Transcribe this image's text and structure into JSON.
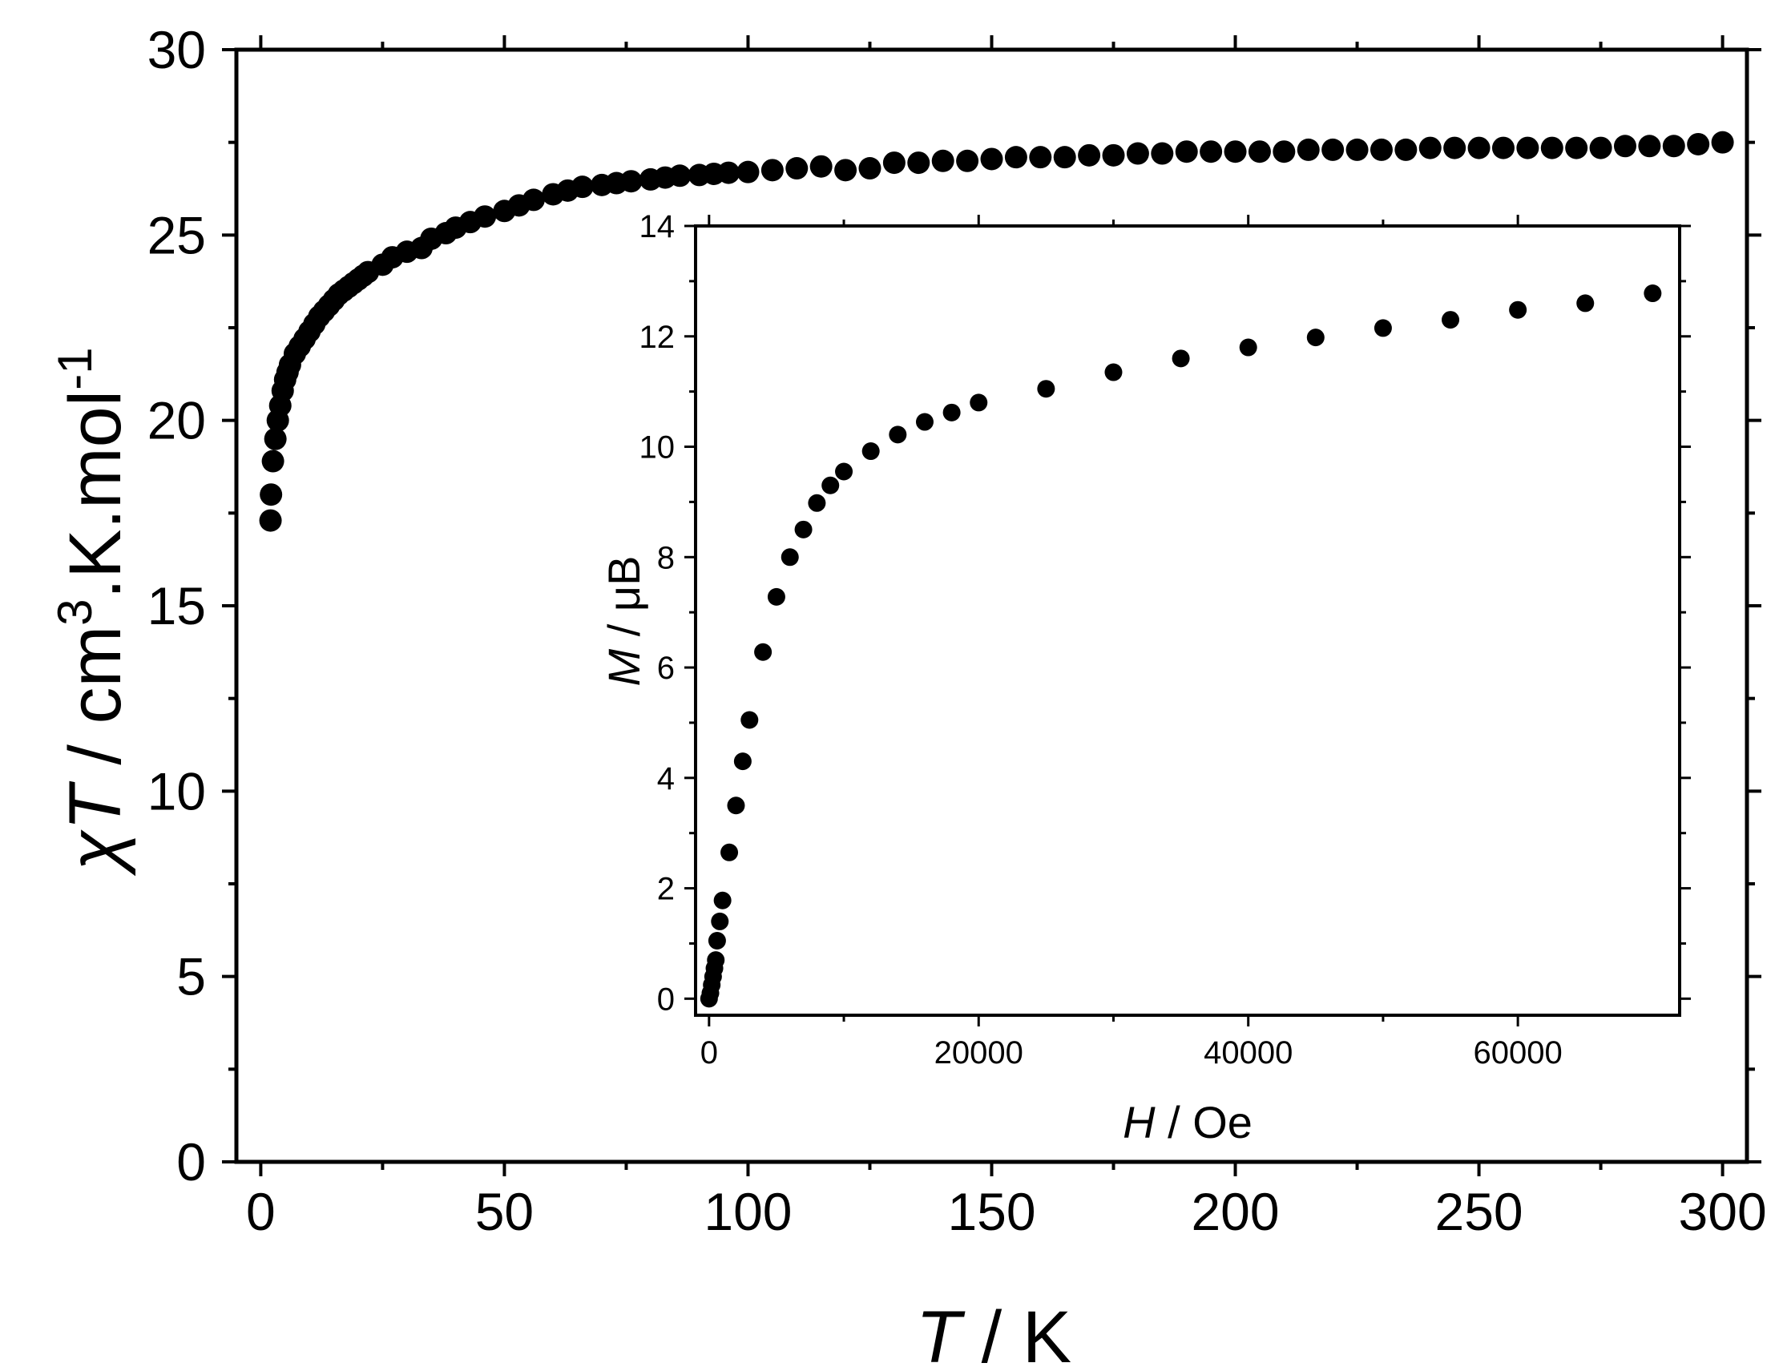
{
  "chart_data": [
    {
      "type": "scatter",
      "title": "",
      "xlabel": {
        "symbol": "T",
        "rest": " / K"
      },
      "ylabel": {
        "symbol": "χT",
        "rest": " / cm",
        "sup1": "3",
        "mid": ".K.mol",
        "sup2": "-1"
      },
      "xlim": [
        -5,
        305
      ],
      "ylim": [
        0,
        30
      ],
      "xticks": [
        0,
        50,
        100,
        150,
        200,
        250,
        300
      ],
      "yticks": [
        0,
        5,
        10,
        15,
        20,
        25,
        30
      ],
      "xtick_labels": [
        "0",
        "50",
        "100",
        "150",
        "200",
        "250",
        "300"
      ],
      "ytick_labels": [
        "0",
        "5",
        "10",
        "15",
        "20",
        "25",
        "30"
      ],
      "grid": false,
      "marker_color": "#000000",
      "x": [
        2,
        2.1,
        2.5,
        3,
        3.5,
        4,
        4.5,
        5,
        5.5,
        6,
        7,
        8,
        9,
        10,
        11,
        12,
        13,
        14,
        15,
        16,
        17,
        18,
        19,
        20,
        21,
        22,
        25,
        27,
        30,
        33,
        35,
        38,
        40,
        43,
        46,
        50,
        53,
        56,
        60,
        63,
        66,
        70,
        73,
        76,
        80,
        83,
        86,
        90,
        93,
        96,
        100,
        105,
        110,
        115,
        120,
        125,
        130,
        135,
        140,
        145,
        150,
        155,
        160,
        165,
        170,
        175,
        180,
        185,
        190,
        195,
        200,
        205,
        210,
        215,
        220,
        225,
        230,
        235,
        240,
        245,
        250,
        255,
        260,
        265,
        270,
        275,
        280,
        285,
        290,
        295,
        300
      ],
      "y": [
        17.3,
        18.0,
        18.9,
        19.5,
        20.0,
        20.4,
        20.8,
        21.1,
        21.3,
        21.5,
        21.8,
        22.0,
        22.2,
        22.4,
        22.6,
        22.8,
        22.95,
        23.1,
        23.25,
        23.4,
        23.5,
        23.6,
        23.7,
        23.8,
        23.9,
        24.0,
        24.2,
        24.4,
        24.55,
        24.65,
        24.9,
        25.05,
        25.2,
        25.35,
        25.5,
        25.65,
        25.8,
        25.95,
        26.1,
        26.2,
        26.3,
        26.35,
        26.4,
        26.45,
        26.5,
        26.55,
        26.6,
        26.62,
        26.65,
        26.68,
        26.7,
        26.75,
        26.8,
        26.85,
        26.75,
        26.8,
        26.95,
        26.95,
        27.0,
        27.0,
        27.05,
        27.1,
        27.1,
        27.1,
        27.15,
        27.15,
        27.2,
        27.2,
        27.25,
        27.25,
        27.25,
        27.25,
        27.25,
        27.3,
        27.3,
        27.3,
        27.3,
        27.3,
        27.35,
        27.35,
        27.35,
        27.35,
        27.35,
        27.35,
        27.35,
        27.35,
        27.4,
        27.4,
        27.4,
        27.45,
        27.5
      ]
    },
    {
      "type": "scatter",
      "title": "",
      "xlabel": {
        "symbol": "H",
        "rest": " / Oe"
      },
      "ylabel": {
        "symbol": "M",
        "rest": " / μB"
      },
      "xlim": [
        -1000,
        72000
      ],
      "ylim": [
        -0.3,
        14
      ],
      "xticks": [
        0,
        20000,
        40000,
        60000
      ],
      "yticks": [
        0,
        2,
        4,
        6,
        8,
        10,
        12,
        14
      ],
      "xtick_labels": [
        "0",
        "20000",
        "40000",
        "60000"
      ],
      "ytick_labels": [
        "0",
        "2",
        "4",
        "6",
        "8",
        "10",
        "12",
        "14"
      ],
      "grid": false,
      "marker_color": "#000000",
      "x": [
        0,
        100,
        200,
        300,
        400,
        500,
        600,
        800,
        1000,
        1500,
        2000,
        2500,
        3000,
        4000,
        5000,
        6000,
        7000,
        8000,
        9000,
        10000,
        12000,
        14000,
        16000,
        18000,
        20000,
        25000,
        30000,
        35000,
        40000,
        45000,
        50000,
        55000,
        60000,
        65000,
        70000
      ],
      "y": [
        0,
        0.1,
        0.25,
        0.4,
        0.55,
        0.7,
        1.05,
        1.4,
        1.78,
        2.65,
        3.5,
        4.3,
        5.05,
        6.28,
        7.28,
        8.0,
        8.5,
        8.98,
        9.3,
        9.55,
        9.92,
        10.22,
        10.45,
        10.62,
        10.8,
        11.05,
        11.35,
        11.6,
        11.8,
        11.98,
        12.15,
        12.3,
        12.48,
        12.6,
        12.78
      ]
    }
  ]
}
